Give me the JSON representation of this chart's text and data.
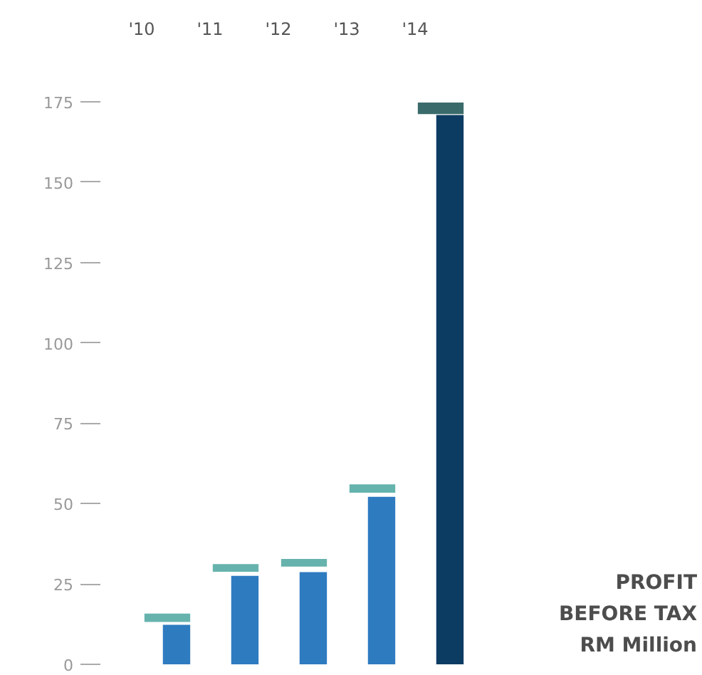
{
  "chart_data": {
    "type": "bar",
    "title": "PROFIT BEFORE TAX",
    "annotations": [
      "RM Million"
    ],
    "categories": [
      "'10",
      "'11",
      "'12",
      "'13",
      "'14"
    ],
    "series": [
      {
        "colors": [
          "#2e7bc0",
          "#2e7bc0",
          "#2e7bc0",
          "#2e7bc0",
          "#0d3c63"
        ],
        "values": [
          12.3,
          27.5,
          28.7,
          52.1,
          170.9
        ]
      },
      {
        "colors": [
          "#66b3ad",
          "#66b3ad",
          "#66b3ad",
          "#66b3ad",
          "#3a6b6a"
        ],
        "base": [
          13.2,
          28.8,
          30.4,
          53.4,
          171.2
        ],
        "values": [
          2.6,
          2.4,
          2.4,
          2.6,
          3.6
        ]
      }
    ],
    "ylim": [
      0,
      175
    ],
    "yticks": [
      0,
      25,
      50,
      75,
      100,
      125,
      150,
      175
    ],
    "grid": false
  }
}
